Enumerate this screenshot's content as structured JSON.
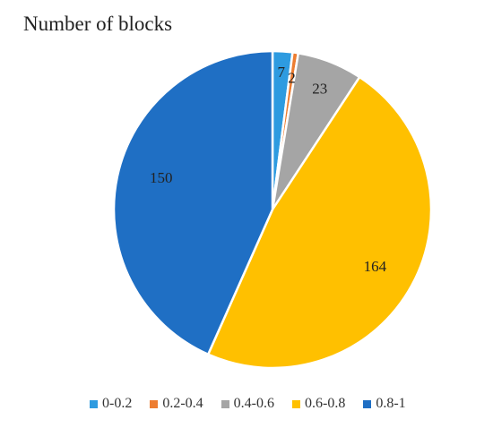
{
  "chart_data": {
    "type": "pie",
    "title": "Number of blocks",
    "categories": [
      "0-0.2",
      "0.2-0.4",
      "0.4-0.6",
      "0.6-0.8",
      "0.8-1"
    ],
    "values": [
      7,
      2,
      23,
      164,
      150
    ],
    "colors": [
      "#2E9BE0",
      "#ED7D31",
      "#A5A5A5",
      "#FFC000",
      "#1F6FC4"
    ],
    "data_labels": [
      "7",
      "2",
      "23",
      "164",
      "150"
    ],
    "start_angle": "12 o'clock",
    "direction": "clockwise",
    "legend_position": "bottom"
  }
}
